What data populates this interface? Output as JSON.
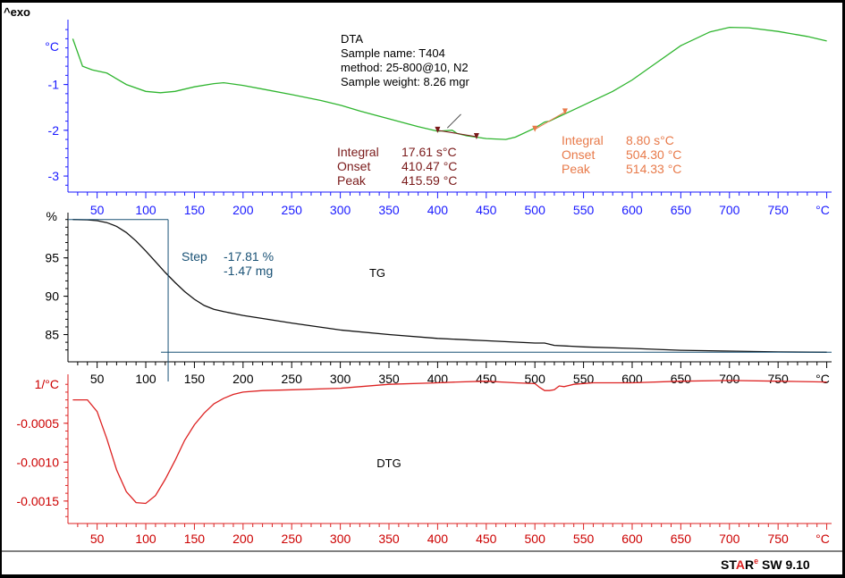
{
  "header": {
    "exo_label": "^exo"
  },
  "footer": {
    "brand_prefix": "ST",
    "brand_a": "A",
    "brand_r": "R",
    "brand_sup": "e",
    "version": " SW 9.10"
  },
  "chart_data": [
    {
      "id": "dta",
      "type": "line",
      "color": "#2fb52f",
      "axis_color": "#1a1aff",
      "label_color": "#1a1aff",
      "x_unit": "°C",
      "y_unit": "°C",
      "xlim": [
        20,
        805
      ],
      "ylim": [
        -3.35,
        0.3
      ],
      "xticks": [
        50,
        100,
        150,
        200,
        250,
        300,
        350,
        400,
        450,
        500,
        550,
        600,
        650,
        700,
        750
      ],
      "yticks": [
        -1,
        -2,
        -3
      ],
      "info": [
        "DTA",
        "Sample name: T404",
        "method: 25-800@10, N2",
        "Sample weight: 8.26 mgr"
      ],
      "peaks": [
        {
          "color": "#7a1a1a",
          "rows": [
            [
              "Integral",
              "17.61 s°C"
            ],
            [
              "Onset",
              "410.47 °C"
            ],
            [
              "Peak",
              "415.59 °C"
            ]
          ]
        },
        {
          "color": "#e87a4a",
          "rows": [
            [
              "Integral",
              "8.80 s°C"
            ],
            [
              "Onset",
              "504.30 °C"
            ],
            [
              "Peak",
              "514.33 °C"
            ]
          ]
        }
      ],
      "x": [
        25,
        35,
        45,
        60,
        80,
        100,
        115,
        130,
        150,
        170,
        180,
        200,
        220,
        250,
        280,
        300,
        320,
        350,
        380,
        400,
        415,
        420,
        430,
        450,
        470,
        480,
        500,
        510,
        515,
        520,
        530,
        550,
        580,
        600,
        620,
        650,
        680,
        700,
        720,
        750,
        780,
        800
      ],
      "y": [
        0.0,
        -0.6,
        -0.68,
        -0.75,
        -1.0,
        -1.15,
        -1.18,
        -1.15,
        -1.05,
        -0.98,
        -0.96,
        -1.02,
        -1.1,
        -1.22,
        -1.35,
        -1.45,
        -1.58,
        -1.75,
        -1.92,
        -2.02,
        -2.0,
        -2.07,
        -2.12,
        -2.18,
        -2.2,
        -2.15,
        -1.95,
        -1.82,
        -1.8,
        -1.75,
        -1.65,
        -1.45,
        -1.15,
        -0.9,
        -0.6,
        -0.15,
        0.15,
        0.25,
        0.24,
        0.16,
        0.05,
        -0.05
      ]
    },
    {
      "id": "tg",
      "type": "line",
      "color": "#111111",
      "axis_color": "#000000",
      "label_color": "#000000",
      "x_unit": "°C",
      "y_unit": "%",
      "xlim": [
        20,
        805
      ],
      "ylim": [
        82.5,
        100.2
      ],
      "xticks": [
        50,
        100,
        150,
        200,
        250,
        300,
        350,
        400,
        450,
        500,
        550,
        600,
        650,
        700,
        750
      ],
      "yticks": [
        95,
        90,
        85
      ],
      "title": "TG",
      "step": {
        "label": "Step",
        "value": "-17.81 %",
        "mass": "-1.47 mg",
        "color": "#1a5276",
        "x": 123,
        "y_start": 100,
        "y_end": 82.7
      },
      "x": [
        25,
        40,
        50,
        60,
        70,
        80,
        90,
        100,
        110,
        120,
        130,
        140,
        150,
        160,
        170,
        180,
        200,
        220,
        250,
        300,
        350,
        400,
        450,
        500,
        510,
        520,
        550,
        600,
        650,
        700,
        750,
        800
      ],
      "y": [
        100,
        99.95,
        99.85,
        99.6,
        99.1,
        98.3,
        97.2,
        95.9,
        94.5,
        93.1,
        91.8,
        90.6,
        89.6,
        88.8,
        88.3,
        88.0,
        87.5,
        87.1,
        86.5,
        85.6,
        85.0,
        84.5,
        84.2,
        83.9,
        83.9,
        83.6,
        83.4,
        83.2,
        82.95,
        82.85,
        82.75,
        82.7
      ]
    },
    {
      "id": "dtg",
      "type": "line",
      "color": "#dd2222",
      "axis_color": "#dd2222",
      "label_color": "#cc0000",
      "x_unit": "°C",
      "y_unit": "1/°C",
      "xlim": [
        20,
        805
      ],
      "ylim": [
        -0.00172,
        6e-05
      ],
      "xticks": [
        50,
        100,
        150,
        200,
        250,
        300,
        350,
        400,
        450,
        500,
        550,
        600,
        650,
        700,
        750
      ],
      "yticks": [
        -0.0005,
        -0.001,
        -0.0015
      ],
      "ytick_labels": [
        "-0.0005",
        "-0.0010",
        "-0.0015"
      ],
      "title": "DTG",
      "x": [
        25,
        40,
        50,
        60,
        70,
        80,
        90,
        100,
        110,
        120,
        130,
        140,
        150,
        160,
        170,
        180,
        190,
        200,
        220,
        250,
        300,
        350,
        400,
        420,
        450,
        480,
        500,
        505,
        510,
        515,
        520,
        525,
        530,
        540,
        560,
        600,
        650,
        700,
        750,
        800
      ],
      "y": [
        -0.0002,
        -0.0002,
        -0.00035,
        -0.0007,
        -0.0011,
        -0.00138,
        -0.00152,
        -0.00153,
        -0.00143,
        -0.00122,
        -0.00098,
        -0.00072,
        -0.00052,
        -0.00037,
        -0.00025,
        -0.00018,
        -0.00013,
        -0.0001,
        -8e-05,
        -7e-05,
        -5e-05,
        0.0,
        2e-05,
        3e-05,
        4e-05,
        2e-05,
        1e-05,
        -4e-05,
        -8e-05,
        -8e-05,
        -7e-05,
        -2e-05,
        -3e-05,
        0.0,
        2e-05,
        2e-05,
        4e-05,
        5e-05,
        4e-05,
        3e-05
      ]
    }
  ]
}
